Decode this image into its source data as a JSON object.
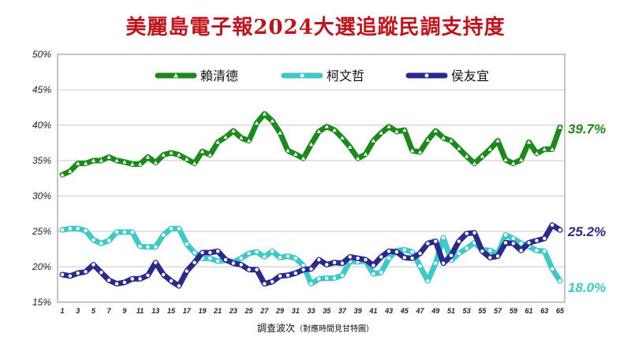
{
  "chart_data": {
    "type": "line",
    "title": "美麗島電子報2024大選追蹤民調支持度",
    "xlabel": "調查波次",
    "xlabel_note": "（對應時間見甘特圖）",
    "ylabel": "",
    "ylim": [
      15,
      50
    ],
    "yticks": [
      "15%",
      "20%",
      "25%",
      "30%",
      "35%",
      "40%",
      "45%",
      "50%"
    ],
    "x": [
      1,
      2,
      3,
      4,
      5,
      6,
      7,
      8,
      9,
      10,
      11,
      12,
      13,
      14,
      15,
      16,
      17,
      18,
      19,
      20,
      21,
      22,
      23,
      24,
      25,
      26,
      27,
      28,
      29,
      30,
      31,
      32,
      33,
      34,
      35,
      36,
      37,
      38,
      39,
      40,
      41,
      42,
      43,
      44,
      45,
      46,
      47,
      48,
      49,
      50,
      51,
      52,
      53,
      54,
      55,
      56,
      57,
      58,
      59,
      60,
      61,
      62,
      63,
      64,
      65
    ],
    "xtick_labels": [
      "1",
      "3",
      "5",
      "7",
      "9",
      "11",
      "13",
      "15",
      "17",
      "19",
      "21",
      "23",
      "25",
      "27",
      "29",
      "31",
      "33",
      "35",
      "37",
      "39",
      "41",
      "43",
      "45",
      "47",
      "49",
      "51",
      "53",
      "55",
      "57",
      "59",
      "61",
      "63",
      "65"
    ],
    "grid": true,
    "legend_position": "top",
    "series": [
      {
        "name": "賴清德",
        "color": "#1a8a1a",
        "marker": "triangle",
        "end_label": "39.7%",
        "values": [
          33.0,
          33.5,
          34.6,
          34.6,
          35.0,
          35.0,
          35.5,
          35.0,
          34.8,
          34.5,
          34.5,
          35.5,
          34.7,
          35.8,
          36.1,
          35.8,
          35.2,
          34.6,
          36.3,
          35.8,
          37.6,
          38.3,
          39.2,
          38.2,
          37.8,
          40.3,
          41.6,
          40.6,
          38.9,
          36.4,
          35.9,
          35.3,
          37.3,
          39.1,
          39.8,
          39.3,
          38.2,
          36.9,
          35.3,
          35.9,
          37.8,
          38.9,
          39.8,
          39.1,
          39.3,
          36.4,
          36.2,
          37.9,
          39.2,
          38.2,
          37.8,
          36.7,
          35.6,
          34.6,
          35.6,
          36.6,
          37.8,
          35.1,
          34.6,
          35.1,
          37.6,
          36.0,
          36.6,
          36.6,
          39.7
        ]
      },
      {
        "name": "柯文哲",
        "color": "#3ec9c9",
        "marker": "circle",
        "end_label": "18.0%",
        "values": [
          25.2,
          25.4,
          25.4,
          25.1,
          23.8,
          23.3,
          23.7,
          24.9,
          24.9,
          24.9,
          22.9,
          22.8,
          22.8,
          24.5,
          25.4,
          25.4,
          23.2,
          22.0,
          21.2,
          21.2,
          20.8,
          20.9,
          20.7,
          21.2,
          21.9,
          22.1,
          21.4,
          22.2,
          21.3,
          21.5,
          21.2,
          20.2,
          17.6,
          18.3,
          18.4,
          18.4,
          18.8,
          20.8,
          20.7,
          20.8,
          19.0,
          19.2,
          21.2,
          22.3,
          22.4,
          22.1,
          20.1,
          18.0,
          20.5,
          24.1,
          20.9,
          21.9,
          22.6,
          23.4,
          22.4,
          22.3,
          21.8,
          24.5,
          24.0,
          23.3,
          22.9,
          22.3,
          22.2,
          19.7,
          18.0
        ]
      },
      {
        "name": "侯友宜",
        "color": "#2a2a8e",
        "marker": "circle",
        "end_label": "25.2%",
        "values": [
          18.9,
          18.7,
          19.1,
          19.3,
          20.3,
          19.2,
          18.1,
          17.6,
          17.8,
          18.3,
          18.3,
          18.8,
          20.6,
          18.9,
          18.0,
          17.3,
          19.4,
          20.6,
          22.0,
          22.0,
          22.2,
          21.0,
          20.5,
          20.3,
          19.6,
          19.6,
          17.6,
          17.9,
          18.7,
          18.8,
          19.1,
          19.6,
          19.7,
          21.0,
          20.3,
          20.6,
          20.5,
          21.4,
          21.2,
          21.0,
          20.2,
          21.4,
          22.2,
          22.1,
          21.3,
          21.2,
          21.9,
          23.3,
          23.6,
          20.5,
          21.6,
          23.6,
          24.7,
          24.8,
          22.2,
          21.3,
          21.5,
          23.4,
          23.3,
          22.3,
          23.4,
          23.7,
          24.0,
          25.9,
          25.2
        ]
      }
    ]
  }
}
